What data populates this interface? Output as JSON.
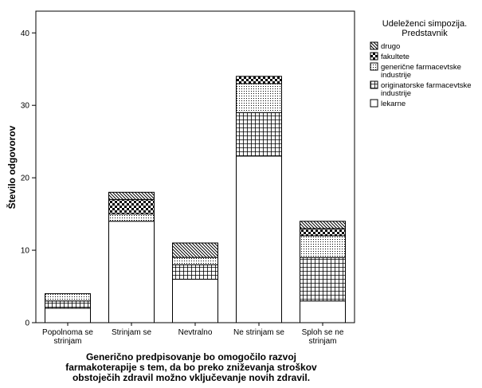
{
  "chart_data": {
    "type": "bar",
    "stacked": true,
    "title": "",
    "xlabel": "Generično predpisovanje bo omogočilo razvoj farmakoterapije s tem, da bo preko zniževanja stroškov obstoječih zdravil možno vključevanje novih zdravil.",
    "xlabel_lines": [
      "Generično predpisovanje bo omogočilo razvoj",
      "farmakoterapije s tem, da bo preko zniževanja stroškov",
      "obstoječih zdravil možno vključevanje novih zdravil."
    ],
    "ylabel": "Število odgovorov",
    "ylim": [
      0,
      43
    ],
    "yticks": [
      0,
      10,
      20,
      30,
      40
    ],
    "grid": false,
    "legend_position": "right",
    "categories": [
      [
        "Popolnoma se",
        "strinjam"
      ],
      [
        "Strinjam se"
      ],
      [
        "Nevtralno"
      ],
      [
        "Ne strinjam se"
      ],
      [
        "Sploh se ne",
        "strinjam"
      ]
    ],
    "legend": {
      "title_lines": [
        "Udeleženci simpozija.",
        "Predstavnik"
      ]
    },
    "series": [
      {
        "name": "lekarne",
        "name_lines": [
          "lekarne"
        ],
        "pattern": "blank",
        "values": [
          2,
          14,
          6,
          23,
          3
        ]
      },
      {
        "name": "originatorske farmacevtske industrije",
        "name_lines": [
          "originatorske farmacevtske",
          "industrije"
        ],
        "pattern": "grid",
        "values": [
          1,
          0,
          2,
          6,
          6
        ]
      },
      {
        "name": "generične farmacevtske industrije",
        "name_lines": [
          "generične farmacevtske",
          "industrije"
        ],
        "pattern": "dots",
        "values": [
          1,
          1,
          1,
          4,
          3
        ]
      },
      {
        "name": "fakultete",
        "name_lines": [
          "fakultete"
        ],
        "pattern": "checker",
        "values": [
          0,
          2,
          0,
          1,
          1
        ]
      },
      {
        "name": "drugo",
        "name_lines": [
          "drugo"
        ],
        "pattern": "diagonal",
        "values": [
          0,
          1,
          2,
          0,
          1
        ]
      }
    ]
  }
}
